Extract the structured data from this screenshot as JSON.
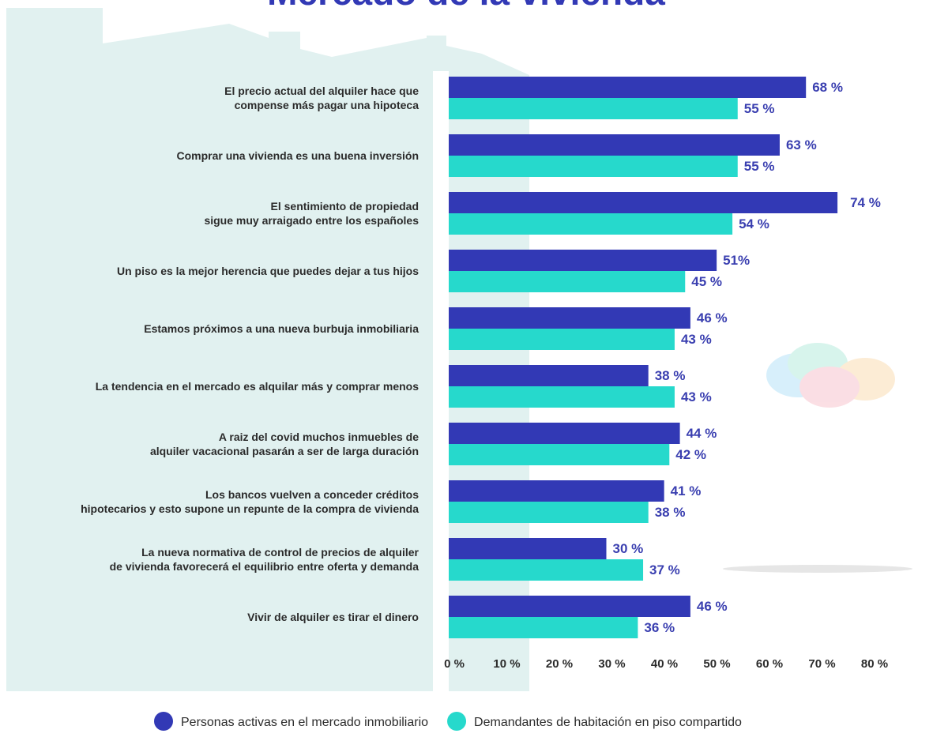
{
  "chart_data": {
    "type": "bar",
    "orientation": "horizontal",
    "title": "Mercado de la vivienda",
    "categories": [
      "El precio actual del alquiler hace que\ncompense más pagar una hipoteca",
      "Comprar una vivienda es una buena inversión",
      "El sentimiento de propiedad\nsigue muy arraigado entre los españoles",
      "Un piso es la mejor herencia que puedes dejar a tus hijos",
      "Estamos próximos a una nueva burbuja inmobiliaria",
      "La tendencia en el mercado es alquilar más y comprar menos",
      "A raiz del covid muchos inmuebles de\nalquiler vacacional pasarán a ser de larga duración",
      "Los bancos vuelven a conceder créditos\nhipotecarios y esto supone un repunte de la compra de vivienda",
      "La nueva normativa de control de precios de alquiler\nde vivienda favorecerá el equilibrio entre oferta y demanda",
      "Vivir de alquiler es tirar el dinero"
    ],
    "series": [
      {
        "name": "Personas activas en el mercado inmobiliario",
        "color": "#3239b5",
        "values": [
          68,
          63,
          74,
          51,
          46,
          38,
          44,
          41,
          30,
          46
        ],
        "value_labels": [
          "68 %",
          "63 %",
          "74 %",
          "51%",
          "46 %",
          "38 %",
          "44 %",
          "41 %",
          "30 %",
          "46 %"
        ]
      },
      {
        "name": "Demandantes de habitación en piso compartido",
        "color": "#26d9cc",
        "values": [
          55,
          55,
          54,
          45,
          43,
          43,
          42,
          38,
          37,
          36
        ],
        "value_labels": [
          "55 %",
          "55 %",
          "54 %",
          "45 %",
          "43 %",
          "43 %",
          "42 %",
          "38 %",
          "37 %",
          "36 %"
        ]
      }
    ],
    "xlim": [
      0,
      80
    ],
    "xticks": [
      {
        "value": 0,
        "label": "0 %"
      },
      {
        "value": 10,
        "label": "10 %"
      },
      {
        "value": 20,
        "label": "20 %"
      },
      {
        "value": 30,
        "label": "30 %"
      },
      {
        "value": 40,
        "label": "40 %"
      },
      {
        "value": 50,
        "label": "50 %"
      },
      {
        "value": 60,
        "label": "60 %"
      },
      {
        "value": 70,
        "label": "70 %"
      },
      {
        "value": 80,
        "label": "80 %"
      }
    ],
    "grid": false,
    "legend": "bottom"
  }
}
